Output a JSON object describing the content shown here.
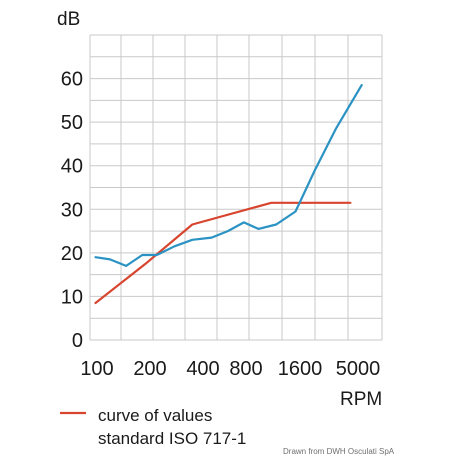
{
  "chart_data": {
    "type": "line",
    "xlabel": "RPM",
    "ylabel": "dB",
    "x_tick_labels": [
      "100",
      "200",
      "400",
      "800",
      "1600",
      "5000"
    ],
    "y_tick_labels": [
      "0",
      "10",
      "20",
      "30",
      "40",
      "50",
      "60"
    ],
    "ylim": [
      0,
      70
    ],
    "xlim_index": [
      -0.17,
      8.88
    ],
    "grid": true,
    "x_scale": "logarithmic",
    "series": [
      {
        "name": "curve of values standard ISO 717-1",
        "color": "#d8452f",
        "x_index": [
          0,
          1.55,
          3.0,
          5.45,
          7.9
        ],
        "y": [
          8.5,
          17.5,
          26.5,
          31.5,
          31.5
        ]
      },
      {
        "color": "#2a93c4",
        "x_index": [
          0,
          0.45,
          0.95,
          1.45,
          1.9,
          2.45,
          3.0,
          3.6,
          4.1,
          4.6,
          5.05,
          5.6,
          6.2,
          6.8,
          7.45,
          8.25
        ],
        "y": [
          19,
          18.5,
          17,
          19.5,
          19.5,
          21.5,
          23,
          23.5,
          25,
          27,
          25.5,
          26.5,
          29.5,
          39,
          48.5,
          58.5
        ]
      }
    ]
  },
  "legend": {
    "line1": "curve of values",
    "line2": "standard ISO 717-1"
  },
  "credit": "Drawn from DWH Osculati SpA"
}
